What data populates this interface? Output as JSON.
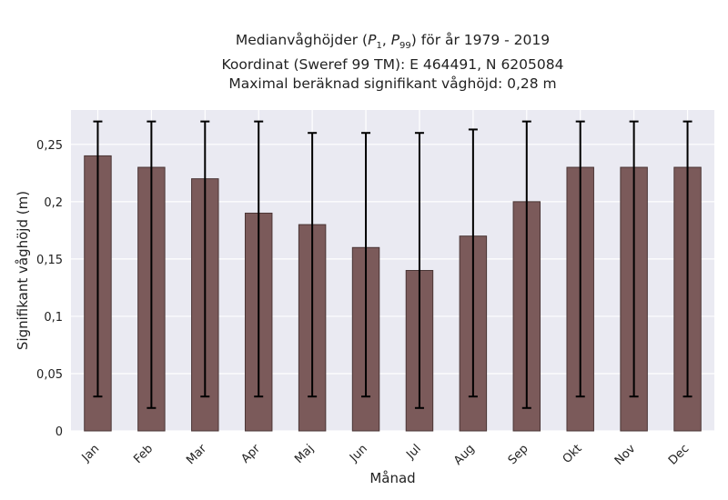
{
  "title": {
    "line1_prefix": "Medianvåghöjder (",
    "p1": "P",
    "p1_sub": "1",
    "comma": ", ",
    "p99": "P",
    "p99_sub": "99",
    "line1_suffix": ") för år 1979 - 2019",
    "line2": "Koordinat (Sweref 99 TM): E 464491, N 6205084",
    "line3": "Maximal beräknad signifikant våghöjd: 0,28 m"
  },
  "chart_data": {
    "type": "bar",
    "xlabel": "Månad",
    "ylabel": "Signifikant våghöjd (m)",
    "ylim": [
      0,
      0.28
    ],
    "yticks": [
      0,
      0.05,
      0.1,
      0.15,
      0.2,
      0.25
    ],
    "ytick_labels": [
      "0",
      "0,05",
      "0,1",
      "0,15",
      "0,2",
      "0,25"
    ],
    "grid": true,
    "categories": [
      "Jan",
      "Feb",
      "Mar",
      "Apr",
      "Maj",
      "Jun",
      "Jul",
      "Aug",
      "Sep",
      "Okt",
      "Nov",
      "Dec"
    ],
    "values": [
      0.24,
      0.23,
      0.22,
      0.19,
      0.18,
      0.16,
      0.14,
      0.17,
      0.2,
      0.23,
      0.23,
      0.23
    ],
    "error_low": [
      0.03,
      0.02,
      0.03,
      0.03,
      0.03,
      0.03,
      0.02,
      0.03,
      0.02,
      0.03,
      0.03,
      0.03
    ],
    "error_high": [
      0.27,
      0.27,
      0.27,
      0.27,
      0.26,
      0.26,
      0.26,
      0.263,
      0.27,
      0.27,
      0.27,
      0.27
    ],
    "colors": {
      "bar": "#7b5a5a",
      "bar_edge": "#4a3535",
      "errorbar": "#000000",
      "plot_bg": "#eaeaf2",
      "grid": "#ffffff",
      "text": "#222222"
    }
  }
}
